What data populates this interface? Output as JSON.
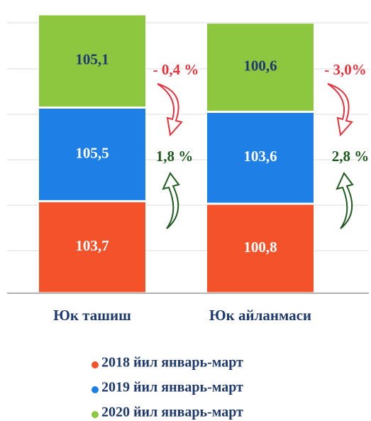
{
  "chart_data": {
    "type": "stacked_bar",
    "categories": [
      "Юк ташиш",
      "Юк айланмаси"
    ],
    "series": [
      {
        "name": "2018 йил январь-март",
        "color": "#f4522a",
        "values": [
          103.7,
          100.8
        ],
        "value_labels": [
          "103,7",
          "100,8"
        ]
      },
      {
        "name": "2019 йил январь-март",
        "color": "#1e7fe6",
        "values": [
          105.5,
          103.6
        ],
        "value_labels": [
          "105,5",
          "103,6"
        ]
      },
      {
        "name": "2020 йил январь-март",
        "color": "#8dc63f",
        "values": [
          105.1,
          100.6
        ],
        "value_labels": [
          "105,1",
          "100,6"
        ]
      }
    ],
    "annotations": [
      {
        "text": "- 0,4 %",
        "color": "#e8323c"
      },
      {
        "text": "1,8 %",
        "color": "#1f5a1f"
      },
      {
        "text": "- 3,0%",
        "color": "#e8323c"
      },
      {
        "text": "2,8 %",
        "color": "#1f5a1f"
      }
    ],
    "ylim": [
      0,
      320
    ]
  }
}
